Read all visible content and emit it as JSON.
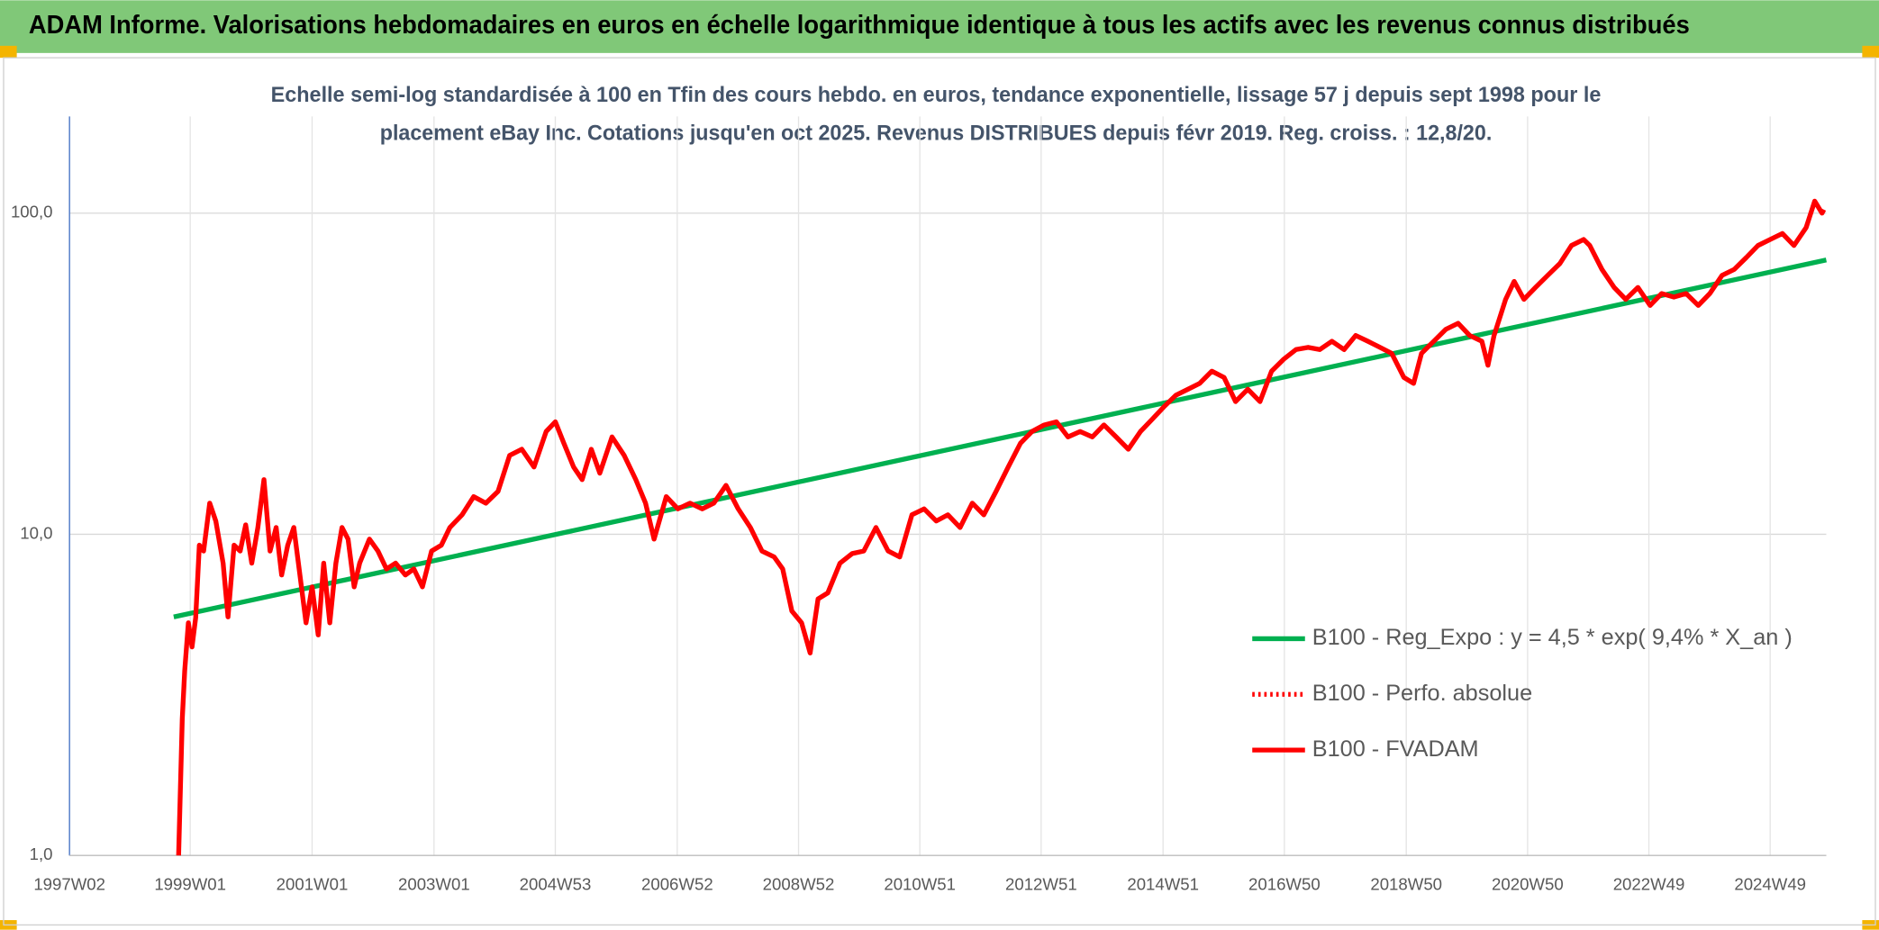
{
  "chart_data": {
    "type": "line",
    "title": "ADAM Informe. Valorisations hebdomadaires en euros en échelle logarithmique identique à tous les actifs avec les revenus connus distribués",
    "subtitle": [
      "Echelle semi-log standardisée à 100 en Tfin des cours hebdo. en euros, tendance exponentielle, lissage 57 j depuis sept 1998 pour le",
      "placement eBay Inc. Cotations jusqu'en oct 2025. Revenus DISTRIBUES depuis févr 2019. Reg. croiss. : 12,8/20."
    ],
    "yscale": "log",
    "grid": true,
    "legend": "bottom-right",
    "xlim": [
      1997.03,
      2025.85
    ],
    "xticks": [
      {
        "value": 1997.03,
        "label": "1997W02"
      },
      {
        "value": 1999.01,
        "label": "1999W01"
      },
      {
        "value": 2001.01,
        "label": "2001W01"
      },
      {
        "value": 2003.01,
        "label": "2003W01"
      },
      {
        "value": 2005.0,
        "label": "2004W53"
      },
      {
        "value": 2007.0,
        "label": "2006W52"
      },
      {
        "value": 2008.99,
        "label": "2008W52"
      },
      {
        "value": 2010.98,
        "label": "2010W51"
      },
      {
        "value": 2012.97,
        "label": "2012W51"
      },
      {
        "value": 2014.97,
        "label": "2014W51"
      },
      {
        "value": 2016.96,
        "label": "2016W50"
      },
      {
        "value": 2018.96,
        "label": "2018W50"
      },
      {
        "value": 2020.95,
        "label": "2020W50"
      },
      {
        "value": 2022.94,
        "label": "2022W49"
      },
      {
        "value": 2024.93,
        "label": "2024W49"
      }
    ],
    "ylim": [
      1,
      200
    ],
    "yticks": [
      {
        "value": 1,
        "label": "1,0"
      },
      {
        "value": 10,
        "label": "10,0"
      },
      {
        "value": 100,
        "label": "100,0"
      }
    ],
    "series": [
      {
        "name": "B100 - Reg_Expo : y = 4,5 * exp( 9,4% *  X_an )",
        "color": "#00b050",
        "dash": "solid",
        "x": [
          1998.74,
          2025.85
        ],
        "values": [
          5.53,
          71.5
        ]
      },
      {
        "name": "B100 - Perfo. absolue",
        "color": "#ff0000",
        "dash": "dotted",
        "x": [],
        "values": []
      },
      {
        "name": "B100 - FVADAM",
        "color": "#ff0000",
        "dash": "solid",
        "x": [
          1998.82,
          1998.88,
          1998.92,
          1998.98,
          1999.04,
          1999.1,
          1999.16,
          1999.23,
          1999.33,
          1999.43,
          1999.55,
          1999.63,
          1999.73,
          1999.83,
          1999.92,
          2000.02,
          2000.12,
          2000.22,
          2000.32,
          2000.42,
          2000.51,
          2000.61,
          2000.71,
          2000.81,
          2000.91,
          2001.01,
          2001.11,
          2001.2,
          2001.3,
          2001.4,
          2001.5,
          2001.6,
          2001.7,
          2001.79,
          2001.95,
          2002.09,
          2002.23,
          2002.38,
          2002.54,
          2002.68,
          2002.82,
          2002.97,
          2003.13,
          2003.27,
          2003.47,
          2003.66,
          2003.86,
          2004.06,
          2004.25,
          2004.45,
          2004.65,
          2004.85,
          2005.0,
          2005.14,
          2005.3,
          2005.44,
          2005.59,
          2005.73,
          2005.93,
          2006.13,
          2006.32,
          2006.48,
          2006.62,
          2006.82,
          2007.01,
          2007.21,
          2007.41,
          2007.6,
          2007.8,
          2008.0,
          2008.2,
          2008.39,
          2008.59,
          2008.73,
          2008.88,
          2009.04,
          2009.18,
          2009.31,
          2009.47,
          2009.67,
          2009.87,
          2010.06,
          2010.26,
          2010.46,
          2010.65,
          2010.85,
          2011.05,
          2011.25,
          2011.44,
          2011.64,
          2011.84,
          2012.03,
          2012.23,
          2012.43,
          2012.63,
          2012.82,
          2013.02,
          2013.22,
          2013.41,
          2013.61,
          2013.81,
          2014.0,
          2014.2,
          2014.4,
          2014.6,
          2014.79,
          2014.98,
          2015.18,
          2015.38,
          2015.57,
          2015.77,
          2015.97,
          2016.16,
          2016.36,
          2016.56,
          2016.75,
          2016.95,
          2017.15,
          2017.35,
          2017.54,
          2017.74,
          2017.94,
          2018.13,
          2018.33,
          2018.53,
          2018.72,
          2018.92,
          2019.08,
          2019.21,
          2019.41,
          2019.61,
          2019.81,
          2020.0,
          2020.2,
          2020.3,
          2020.4,
          2020.59,
          2020.73,
          2020.89,
          2021.08,
          2021.28,
          2021.48,
          2021.67,
          2021.87,
          2021.97,
          2022.17,
          2022.37,
          2022.56,
          2022.76,
          2022.96,
          2023.15,
          2023.35,
          2023.55,
          2023.75,
          2023.94,
          2024.14,
          2024.34,
          2024.54,
          2024.73,
          2024.93,
          2025.13,
          2025.32,
          2025.52,
          2025.66,
          2025.78,
          2025.81
        ],
        "values": [
          1.0,
          2.66,
          3.76,
          5.3,
          4.46,
          5.5,
          9.25,
          8.87,
          12.5,
          11.0,
          8.13,
          5.53,
          9.25,
          8.87,
          10.7,
          8.13,
          10.5,
          14.8,
          8.87,
          10.5,
          7.47,
          9.25,
          10.5,
          7.47,
          5.3,
          6.86,
          4.86,
          8.13,
          5.3,
          8.13,
          10.5,
          9.66,
          6.86,
          8.13,
          9.66,
          8.87,
          7.8,
          8.13,
          7.47,
          7.8,
          6.86,
          8.87,
          9.25,
          10.5,
          11.5,
          13.1,
          12.5,
          13.6,
          17.6,
          18.4,
          16.2,
          20.9,
          22.4,
          19.2,
          16.2,
          14.8,
          18.4,
          15.5,
          20.1,
          17.6,
          14.8,
          12.5,
          9.66,
          13.1,
          12.0,
          12.5,
          12.0,
          12.5,
          14.2,
          12.0,
          10.5,
          8.87,
          8.5,
          7.8,
          5.77,
          5.3,
          4.27,
          6.29,
          6.57,
          8.13,
          8.71,
          8.87,
          10.5,
          8.87,
          8.5,
          11.5,
          12.0,
          11.0,
          11.5,
          10.5,
          12.5,
          11.5,
          13.6,
          16.2,
          19.2,
          20.9,
          21.9,
          22.4,
          20.1,
          20.9,
          20.1,
          21.9,
          20.1,
          18.4,
          20.9,
          22.8,
          24.9,
          27.1,
          28.3,
          29.5,
          32.2,
          30.8,
          25.9,
          28.3,
          25.9,
          32.2,
          35.1,
          37.6,
          38.2,
          37.6,
          39.9,
          37.6,
          41.6,
          39.9,
          38.2,
          36.6,
          30.8,
          29.5,
          36.6,
          39.9,
          43.5,
          45.4,
          41.6,
          39.9,
          33.6,
          41.6,
          53.9,
          61.3,
          53.9,
          58.7,
          64.0,
          69.7,
          79.3,
          82.8,
          79.3,
          66.8,
          58.7,
          53.9,
          58.7,
          51.6,
          56.2,
          54.8,
          56.2,
          51.6,
          56.2,
          64.0,
          66.8,
          72.8,
          79.3,
          82.8,
          86.4,
          79.3,
          90.2,
          109,
          100,
          102.6
        ]
      }
    ]
  }
}
